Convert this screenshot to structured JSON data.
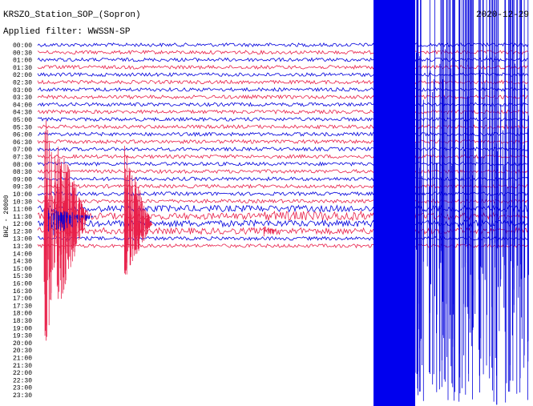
{
  "header": {
    "title": "KRSZO_Station_SOP_(Sopron)",
    "date": "2020-12-29",
    "filter": "Applied filter: WWSSN-SP"
  },
  "axis_label": "BHZ - 20000",
  "rows": [
    "00:00",
    "00:30",
    "01:00",
    "01:30",
    "02:00",
    "02:30",
    "03:00",
    "03:30",
    "04:00",
    "04:30",
    "05:00",
    "05:30",
    "06:00",
    "06:30",
    "07:00",
    "07:30",
    "08:00",
    "08:30",
    "09:00",
    "09:30",
    "10:00",
    "10:30",
    "11:00",
    "11:30",
    "12:00",
    "12:30",
    "13:00",
    "13:30",
    "14:00",
    "14:30",
    "15:00",
    "15:30",
    "16:00",
    "16:30",
    "17:00",
    "17:30",
    "18:00",
    "18:30",
    "19:00",
    "19:30",
    "20:00",
    "20:30",
    "21:00",
    "21:30",
    "22:00",
    "22:30",
    "23:00",
    "23:30"
  ]
}
